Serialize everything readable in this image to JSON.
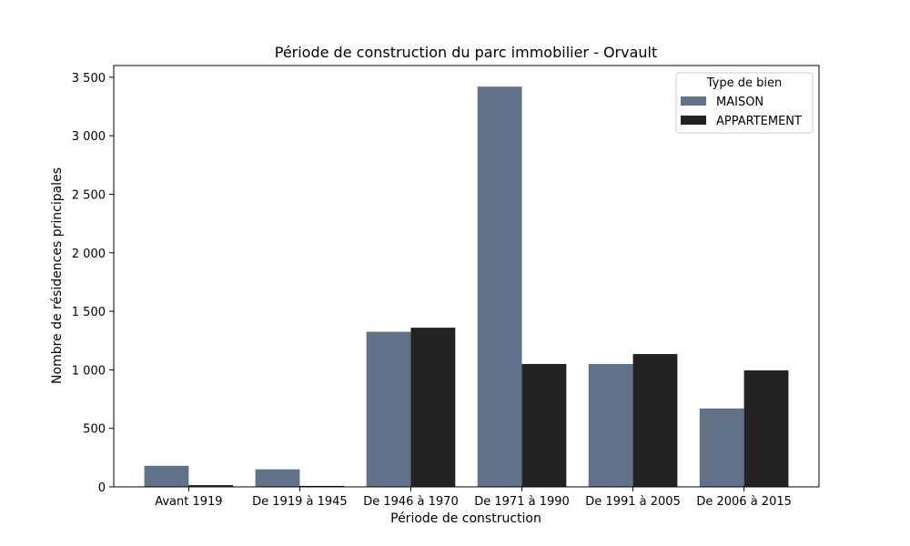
{
  "chart_data": {
    "type": "bar",
    "title": "Période de construction du parc immobilier - Orvault",
    "xlabel": "Période de construction",
    "ylabel": "Nombre de résidences principales",
    "categories": [
      "Avant 1919",
      "De 1919 à 1945",
      "De 1946 à 1970",
      "De 1971 à 1990",
      "De 1991 à 2005",
      "De 2006 à 2015"
    ],
    "series": [
      {
        "name": "MAISON",
        "color": "#627389",
        "values": [
          180,
          150,
          1325,
          3420,
          1050,
          670
        ]
      },
      {
        "name": "APPARTEMENT",
        "color": "#232323",
        "values": [
          15,
          8,
          1360,
          1050,
          1135,
          995
        ]
      }
    ],
    "ylim": [
      0,
      3500
    ],
    "yticks": [
      0,
      500,
      1000,
      1500,
      2000,
      2500,
      3000,
      3500
    ],
    "ytick_labels": [
      "0",
      "500",
      "1 000",
      "1 500",
      "2 000",
      "2 500",
      "3 000",
      "3 500"
    ],
    "legend": {
      "title": "Type de bien",
      "position": "top-right"
    },
    "grid": false
  }
}
